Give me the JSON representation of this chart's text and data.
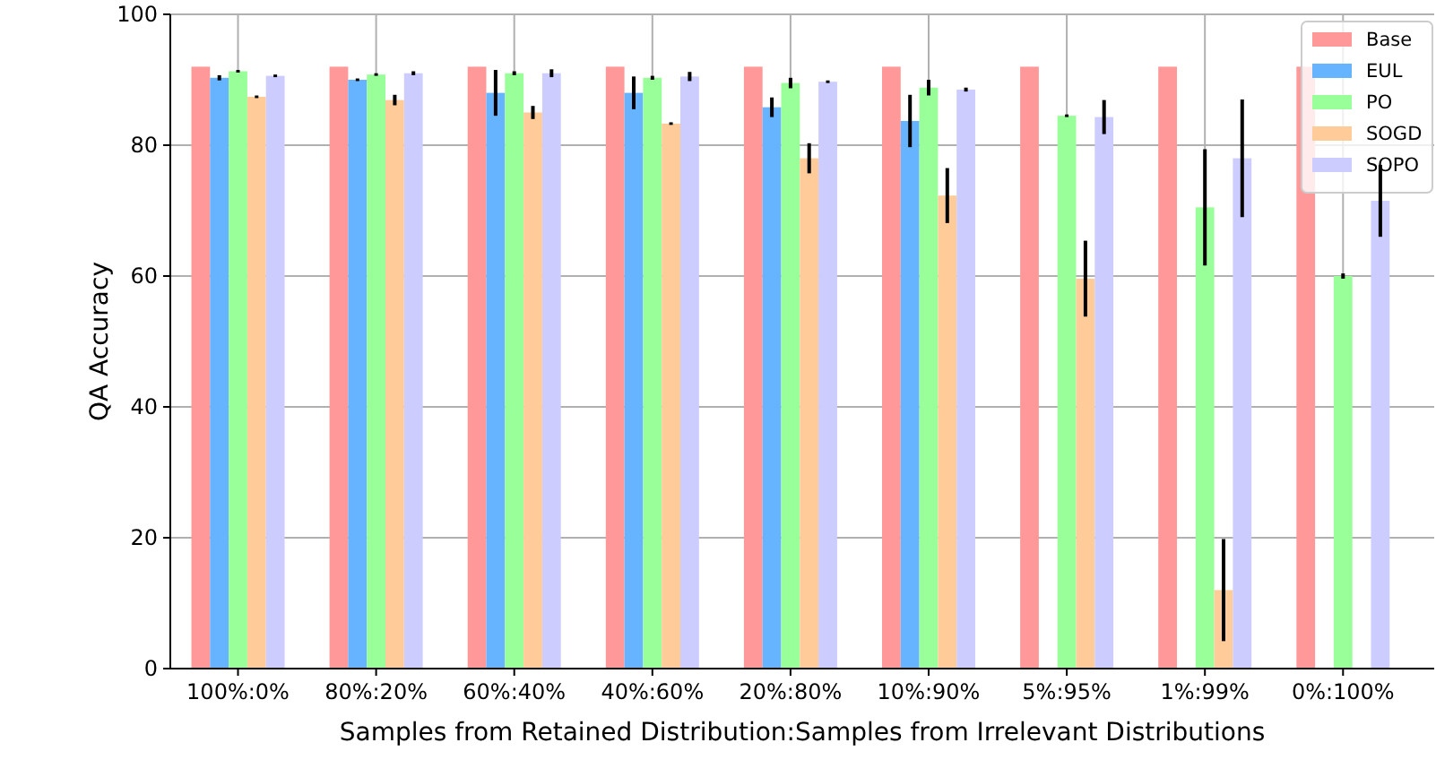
{
  "chart_data": {
    "type": "bar",
    "xlabel": "Samples from Retained Distribution:Samples from Irrelevant Distributions",
    "ylabel": "QA Accuracy",
    "categories": [
      "100%:0%",
      "80%:20%",
      "60%:40%",
      "40%:60%",
      "20%:80%",
      "10%:90%",
      "5%:95%",
      "1%:99%",
      "0%:100%"
    ],
    "series": [
      {
        "name": "Base",
        "color": "#ff9999",
        "values": [
          92,
          92,
          92,
          92,
          92,
          92,
          92,
          92,
          92
        ]
      },
      {
        "name": "EUL",
        "color": "#66b3ff",
        "values": [
          90.3,
          90,
          88,
          88,
          85.8,
          83.7,
          0,
          0,
          0
        ],
        "errors": [
          0.4,
          0.2,
          3.5,
          2.5,
          1.5,
          4,
          null,
          null,
          null
        ]
      },
      {
        "name": "PO",
        "color": "#99ff99",
        "values": [
          91.3,
          90.8,
          91,
          90.3,
          89.5,
          88.8,
          84.5,
          70.5,
          60
        ],
        "errors": [
          0.2,
          0.2,
          0.3,
          0.3,
          0.8,
          1.2,
          0.2,
          8.9,
          0.4
        ]
      },
      {
        "name": "SOGD",
        "color": "#ffcc99",
        "values": [
          87.4,
          86.9,
          85,
          83.3,
          78,
          72.3,
          59.6,
          12,
          0
        ],
        "errors": [
          0.2,
          0.8,
          1,
          0.2,
          2.3,
          4.2,
          5.8,
          7.8,
          null
        ]
      },
      {
        "name": "SOPO",
        "color": "#ccccff",
        "values": [
          90.6,
          91,
          91,
          90.5,
          89.7,
          88.5,
          84.3,
          78,
          71.5
        ],
        "errors": [
          0.2,
          0.3,
          0.6,
          0.7,
          0.2,
          0.3,
          2.6,
          9,
          5.5
        ]
      }
    ],
    "ylim": [
      0,
      100
    ],
    "yticks": [
      0,
      20,
      40,
      60,
      80,
      100
    ],
    "grid": true,
    "legend": "top right"
  }
}
